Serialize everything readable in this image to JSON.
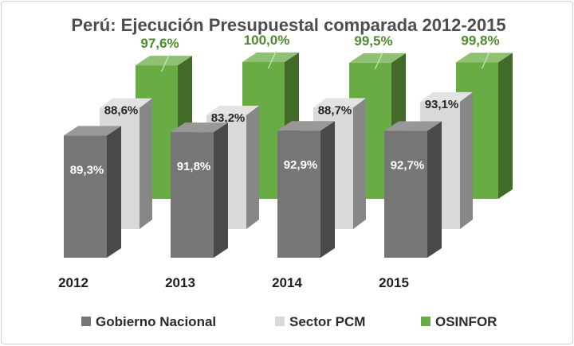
{
  "chart_data": {
    "type": "bar",
    "title": "Perú: Ejecución Presupuestal comparada 2012-2015",
    "categories": [
      "2012",
      "2013",
      "2014",
      "2015"
    ],
    "series": [
      {
        "name": "Gobierno Nacional",
        "values": [
          89.3,
          91.8,
          92.9,
          92.7
        ],
        "labels": [
          "89,3%",
          "91,8%",
          "92,9%",
          "92,7%"
        ]
      },
      {
        "name": "Sector PCM",
        "values": [
          88.6,
          83.2,
          88.7,
          93.1
        ],
        "labels": [
          "88,6%",
          "83,2%",
          "88,7%",
          "93,1%"
        ]
      },
      {
        "name": "OSINFOR",
        "values": [
          97.6,
          100.0,
          99.5,
          99.8
        ],
        "labels": [
          "97,6%",
          "100,0%",
          "99,5%",
          "99,8%"
        ]
      }
    ],
    "legend_position": "bottom",
    "three_d": true
  },
  "colors": {
    "Gobierno Nacional": "#767676",
    "Sector PCM": "#d9d9d9",
    "OSINFOR": "#6aac44",
    "osinfor_label": "#4e8a2c"
  }
}
